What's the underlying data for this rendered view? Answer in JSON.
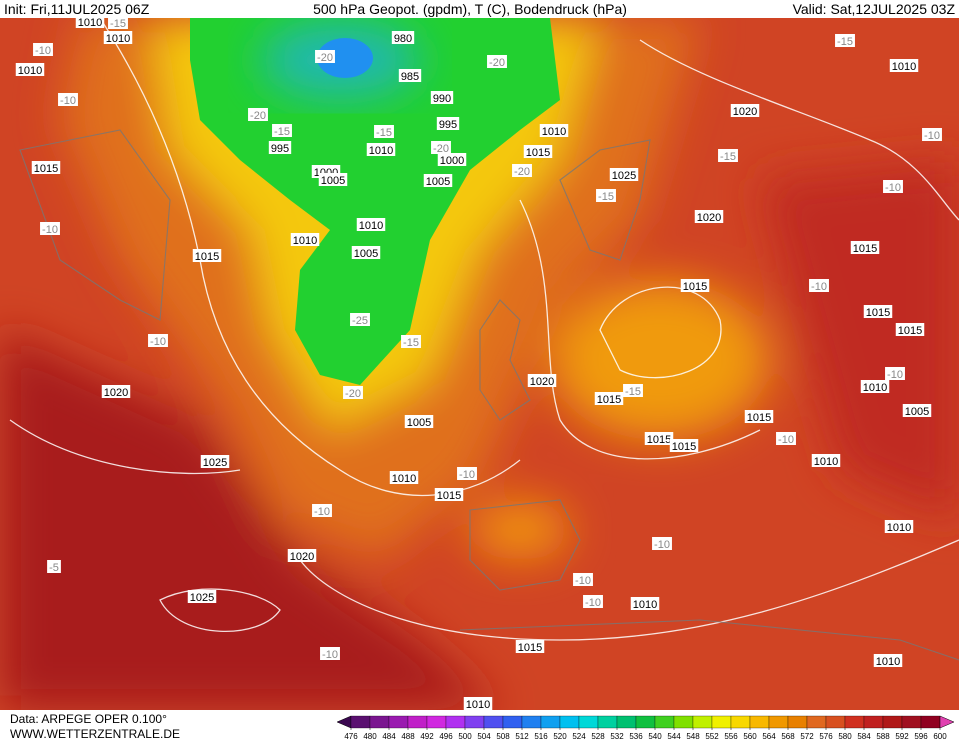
{
  "header": {
    "init": "Init: Fri,11JUL2025 06Z",
    "title": "500 hPa Geopot. (gpdm), T (C), Bodendruck (hPa)",
    "valid": "Valid: Sat,12JUL2025 03Z"
  },
  "footer": {
    "data": "Data: ARPEGE OPER 0.100°",
    "site": "WWW.WETTERZENTRALE.DE"
  },
  "colorbar": {
    "ticks": [
      476,
      480,
      484,
      488,
      492,
      496,
      500,
      504,
      508,
      512,
      516,
      520,
      524,
      528,
      532,
      536,
      540,
      544,
      548,
      552,
      556,
      560,
      564,
      568,
      572,
      576,
      580,
      584,
      588,
      592,
      596,
      600
    ],
    "colors": [
      "#5a1070",
      "#7a1590",
      "#9a1ab0",
      "#c020c8",
      "#d028e0",
      "#b030f0",
      "#8040f0",
      "#5050f0",
      "#3060f0",
      "#2080f0",
      "#10a0f0",
      "#00c0f0",
      "#00d8d8",
      "#00d0a0",
      "#00c070",
      "#10c040",
      "#40d020",
      "#80e000",
      "#c0f000",
      "#f0f000",
      "#f8d800",
      "#f8b800",
      "#f09800",
      "#e88000",
      "#e06820",
      "#d85020",
      "#d03020",
      "#c02020",
      "#b01818",
      "#a01020",
      "#900020"
    ],
    "below_color": "#3a0850",
    "above_color": "#e040b0"
  },
  "labels": {
    "pressure": [
      980,
      985,
      990,
      995,
      995,
      1000,
      1000,
      1005,
      1005,
      1010,
      1010,
      1010,
      1010,
      1010,
      1010,
      1005,
      1015,
      1015,
      1015,
      1020,
      1010,
      1025,
      1020,
      1015,
      1015,
      1015,
      1015,
      1020,
      1015,
      1020,
      1005,
      1015,
      1015,
      1015,
      1010,
      1025,
      1010,
      1015,
      1010,
      1005,
      1010,
      1020,
      1025,
      1010,
      1015,
      1010,
      1010,
      1010
    ],
    "temperature": [
      -10,
      -10,
      -10,
      -10,
      -15,
      -20,
      -20,
      -20,
      -15,
      -15,
      -20,
      -20,
      -25,
      -15,
      -20,
      -15,
      -15,
      -10,
      -10,
      -10,
      -15,
      -10,
      -10,
      -10,
      -10,
      -10,
      -10,
      -10,
      -5,
      -15,
      -10
    ]
  }
}
